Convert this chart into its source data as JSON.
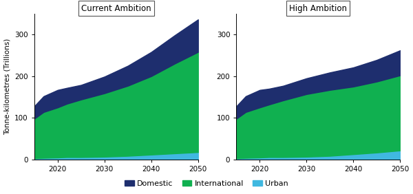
{
  "years": [
    2015,
    2017,
    2020,
    2022,
    2025,
    2030,
    2035,
    2040,
    2045,
    2050
  ],
  "current_ambition": {
    "urban": [
      3,
      4,
      5,
      6,
      6,
      7,
      9,
      12,
      15,
      18
    ],
    "international": [
      95,
      110,
      120,
      128,
      138,
      152,
      168,
      188,
      215,
      240
    ],
    "domestic": [
      30,
      38,
      42,
      38,
      35,
      40,
      48,
      58,
      68,
      78
    ]
  },
  "high_ambition": {
    "urban": [
      3,
      4,
      5,
      6,
      6,
      7,
      9,
      13,
      17,
      22
    ],
    "international": [
      95,
      110,
      120,
      126,
      136,
      150,
      158,
      162,
      170,
      180
    ],
    "domestic": [
      30,
      38,
      42,
      38,
      35,
      38,
      42,
      46,
      52,
      60
    ]
  },
  "colors": {
    "domestic": "#1e2e6e",
    "international": "#10b050",
    "urban": "#40b8e0"
  },
  "ylim": [
    0,
    350
  ],
  "yticks": [
    0,
    100,
    200,
    300
  ],
  "xlim": [
    2015,
    2050
  ],
  "xticks": [
    2020,
    2030,
    2040,
    2050
  ],
  "titles": [
    "Current Ambition",
    "High Ambition"
  ],
  "ylabel": "Tonne-kilometres (Trillions)",
  "legend_labels": [
    "Domestic",
    "International",
    "Urban"
  ],
  "background_color": "#ffffff"
}
